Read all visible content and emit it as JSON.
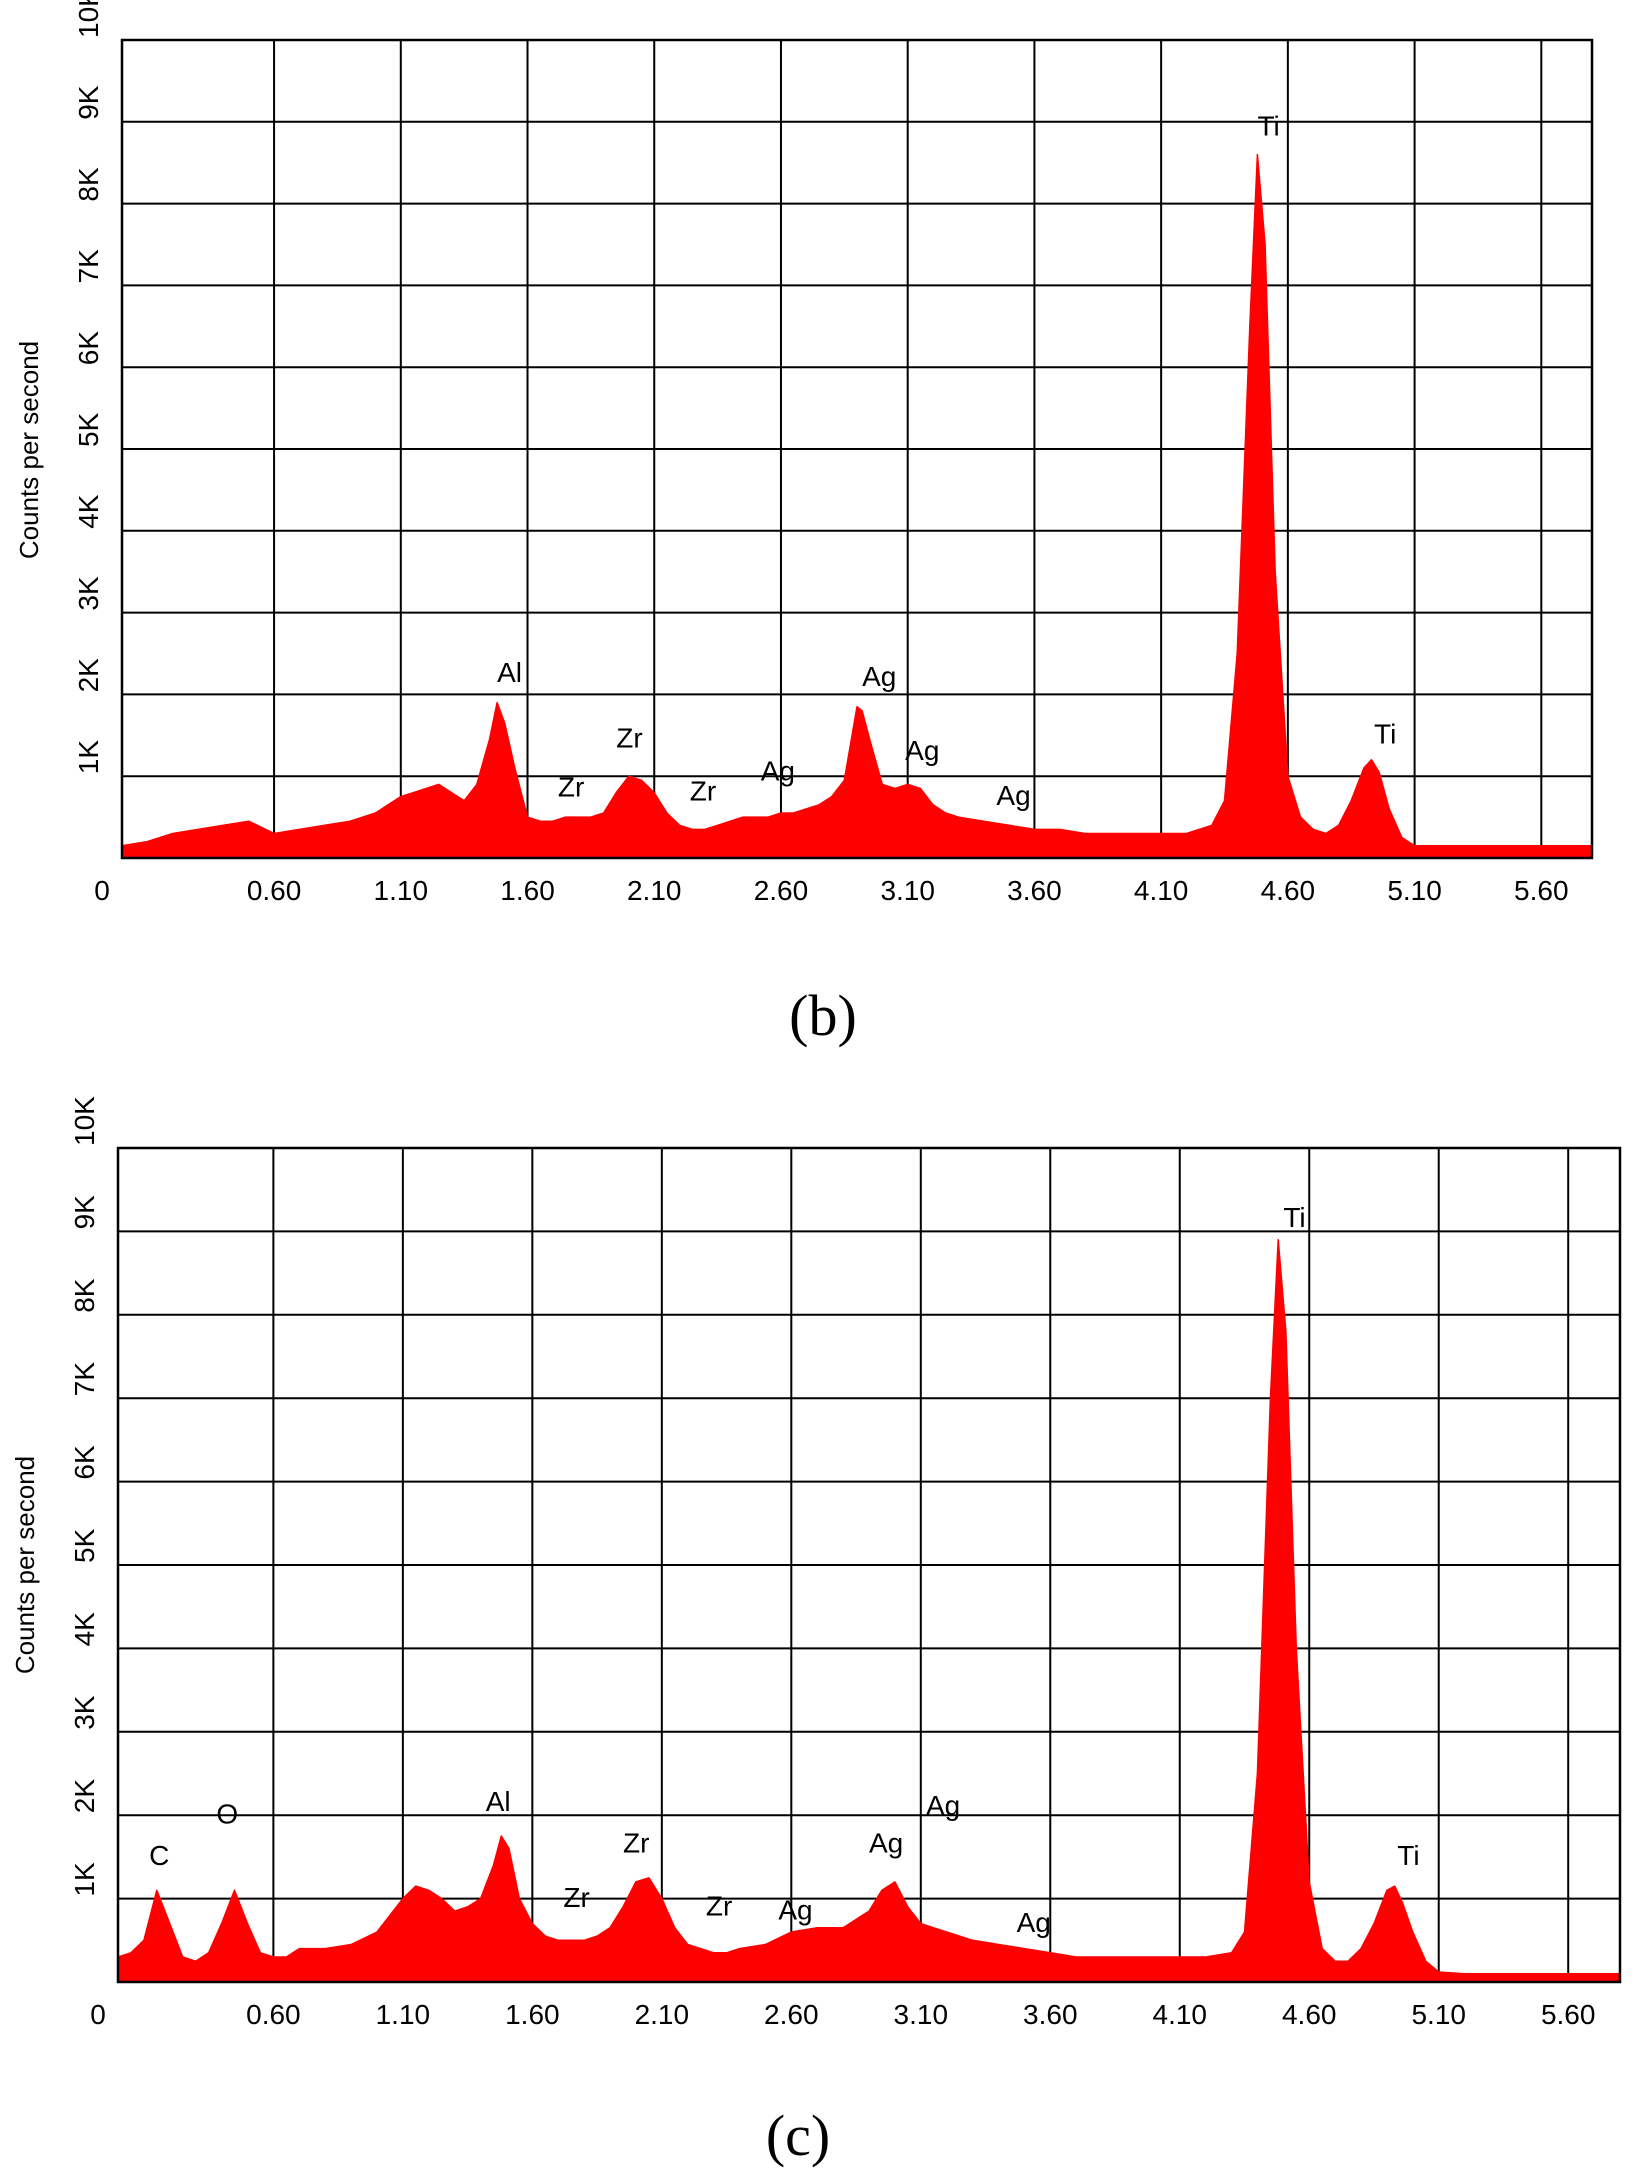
{
  "chart_data": [
    {
      "type": "area",
      "panel_label": "(b)",
      "ylabel": "Counts per second",
      "xlim": [
        0,
        5.8
      ],
      "ylim": [
        0,
        10000
      ],
      "x_ticks": [
        "0",
        "0.60",
        "1.10",
        "1.60",
        "2.10",
        "2.60",
        "3.10",
        "3.60",
        "4.10",
        "4.60",
        "5.10",
        "5.60"
      ],
      "y_ticks": [
        "1K",
        "2K",
        "3K",
        "4K",
        "5K",
        "6K",
        "7K",
        "8K",
        "9K",
        "10K"
      ],
      "grid": true,
      "color": "#ff0000",
      "series": [
        {
          "x": [
            0.0,
            0.1,
            0.2,
            0.3,
            0.4,
            0.5,
            0.6,
            0.7,
            0.8,
            0.9,
            1.0,
            1.05,
            1.1,
            1.15,
            1.2,
            1.25,
            1.3,
            1.35,
            1.4,
            1.45,
            1.48,
            1.51,
            1.55,
            1.6,
            1.65,
            1.7,
            1.75,
            1.8,
            1.85,
            1.9,
            1.95,
            2.0,
            2.05,
            2.1,
            2.15,
            2.2,
            2.25,
            2.3,
            2.35,
            2.4,
            2.45,
            2.5,
            2.55,
            2.6,
            2.65,
            2.7,
            2.75,
            2.8,
            2.85,
            2.9,
            2.92,
            2.95,
            3.0,
            3.05,
            3.1,
            3.15,
            3.2,
            3.25,
            3.3,
            3.4,
            3.5,
            3.6,
            3.7,
            3.8,
            3.9,
            4.0,
            4.1,
            4.2,
            4.3,
            4.35,
            4.4,
            4.45,
            4.48,
            4.51,
            4.55,
            4.6,
            4.65,
            4.7,
            4.75,
            4.8,
            4.85,
            4.9,
            4.93,
            4.96,
            5.0,
            5.05,
            5.1,
            5.2,
            5.3,
            5.4,
            5.5,
            5.6,
            5.7,
            5.8
          ],
          "y": [
            150,
            200,
            300,
            350,
            400,
            450,
            300,
            350,
            400,
            450,
            550,
            650,
            750,
            800,
            850,
            900,
            800,
            700,
            900,
            1450,
            1900,
            1650,
            1100,
            500,
            450,
            450,
            500,
            500,
            500,
            550,
            800,
            1000,
            950,
            800,
            550,
            400,
            350,
            350,
            400,
            450,
            500,
            500,
            500,
            550,
            550,
            600,
            650,
            750,
            950,
            1850,
            1800,
            1450,
            900,
            850,
            900,
            850,
            650,
            550,
            500,
            450,
            400,
            350,
            350,
            300,
            300,
            300,
            300,
            300,
            400,
            700,
            2500,
            6500,
            8600,
            7500,
            3500,
            1000,
            500,
            350,
            300,
            400,
            700,
            1100,
            1200,
            1050,
            600,
            250,
            150,
            150,
            150,
            150,
            150,
            150,
            150,
            150
          ]
        }
      ],
      "annotations": [
        {
          "label": "Al",
          "x": 1.48,
          "y": 2150
        },
        {
          "label": "Zr",
          "x": 1.72,
          "y": 750
        },
        {
          "label": "Zr",
          "x": 1.95,
          "y": 1350
        },
        {
          "label": "Zr",
          "x": 2.24,
          "y": 700
        },
        {
          "label": "Ag",
          "x": 2.52,
          "y": 950
        },
        {
          "label": "Ag",
          "x": 2.92,
          "y": 2100
        },
        {
          "label": "Ag",
          "x": 3.09,
          "y": 1200
        },
        {
          "label": "Ag",
          "x": 3.45,
          "y": 650
        },
        {
          "label": "Ti",
          "x": 4.48,
          "y": 8830
        },
        {
          "label": "Ti",
          "x": 4.94,
          "y": 1400
        }
      ]
    },
    {
      "type": "area",
      "panel_label": "(c)",
      "ylabel": "Counts per second",
      "xlim": [
        0,
        5.8
      ],
      "ylim": [
        0,
        10000
      ],
      "x_ticks": [
        "0",
        "0.60",
        "1.10",
        "1.60",
        "2.10",
        "2.60",
        "3.10",
        "3.60",
        "4.10",
        "4.60",
        "5.10",
        "5.60"
      ],
      "y_ticks": [
        "1K",
        "2K",
        "3K",
        "4K",
        "5K",
        "6K",
        "7K",
        "8K",
        "9K",
        "10K"
      ],
      "grid": true,
      "color": "#ff0000",
      "series": [
        {
          "x": [
            0.0,
            0.05,
            0.1,
            0.15,
            0.2,
            0.25,
            0.3,
            0.35,
            0.4,
            0.45,
            0.5,
            0.55,
            0.6,
            0.65,
            0.7,
            0.8,
            0.9,
            1.0,
            1.05,
            1.1,
            1.15,
            1.2,
            1.25,
            1.3,
            1.35,
            1.4,
            1.45,
            1.48,
            1.51,
            1.55,
            1.6,
            1.65,
            1.7,
            1.75,
            1.8,
            1.85,
            1.9,
            1.95,
            2.0,
            2.05,
            2.1,
            2.15,
            2.2,
            2.25,
            2.3,
            2.35,
            2.4,
            2.5,
            2.6,
            2.7,
            2.8,
            2.9,
            2.95,
            3.0,
            3.05,
            3.1,
            3.15,
            3.2,
            3.3,
            3.4,
            3.5,
            3.6,
            3.7,
            3.8,
            3.9,
            4.0,
            4.1,
            4.2,
            4.3,
            4.35,
            4.4,
            4.45,
            4.48,
            4.51,
            4.55,
            4.6,
            4.65,
            4.7,
            4.75,
            4.8,
            4.85,
            4.9,
            4.93,
            4.96,
            5.0,
            5.05,
            5.1,
            5.2,
            5.3,
            5.4,
            5.5,
            5.6,
            5.7,
            5.8
          ],
          "y": [
            300,
            350,
            500,
            1100,
            700,
            300,
            250,
            350,
            700,
            1100,
            700,
            350,
            300,
            300,
            400,
            400,
            450,
            600,
            800,
            1000,
            1150,
            1100,
            1000,
            850,
            900,
            1000,
            1400,
            1750,
            1600,
            1000,
            700,
            550,
            500,
            500,
            500,
            550,
            650,
            900,
            1200,
            1250,
            1000,
            650,
            450,
            400,
            350,
            350,
            400,
            450,
            600,
            650,
            650,
            850,
            1100,
            1200,
            900,
            700,
            650,
            600,
            500,
            450,
            400,
            350,
            300,
            300,
            300,
            300,
            300,
            300,
            350,
            600,
            2500,
            7000,
            8900,
            7800,
            4000,
            1200,
            400,
            250,
            250,
            400,
            700,
            1100,
            1150,
            950,
            600,
            250,
            120,
            100,
            100,
            100,
            100,
            100,
            100,
            100
          ]
        }
      ],
      "annotations": [
        {
          "label": "C",
          "x": 0.12,
          "y": 1400
        },
        {
          "label": "O",
          "x": 0.38,
          "y": 1900
        },
        {
          "label": "Al",
          "x": 1.42,
          "y": 2050
        },
        {
          "label": "Zr",
          "x": 1.72,
          "y": 900
        },
        {
          "label": "Zr",
          "x": 1.95,
          "y": 1550
        },
        {
          "label": "Zr",
          "x": 2.27,
          "y": 800
        },
        {
          "label": "Ag",
          "x": 2.55,
          "y": 750
        },
        {
          "label": "Ag",
          "x": 2.9,
          "y": 1550
        },
        {
          "label": "Ag",
          "x": 3.12,
          "y": 2000
        },
        {
          "label": "Ag",
          "x": 3.47,
          "y": 600
        },
        {
          "label": "Ti",
          "x": 4.5,
          "y": 9050
        },
        {
          "label": "Ti",
          "x": 4.94,
          "y": 1400
        }
      ]
    }
  ]
}
